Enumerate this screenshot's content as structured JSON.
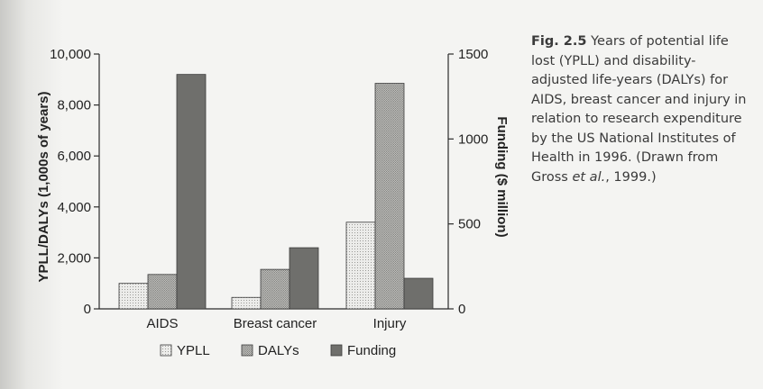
{
  "caption": {
    "fig_label": "Fig. 2.5",
    "text_before_etal": "Years of potential life lost (YPLL) and disability-adjusted life-years (DALYs) for AIDS, breast cancer and injury in relation to research expenditure by the US National Institutes of Health in 1996. (Drawn from Gross ",
    "etal": "et al.",
    "text_after_etal": ", 1999.)"
  },
  "chart_data": {
    "type": "bar",
    "categories": [
      "AIDS",
      "Breast cancer",
      "Injury"
    ],
    "series": [
      {
        "name": "YPLL",
        "axis": "left",
        "values": [
          1000,
          450,
          3400
        ],
        "color": "#e8e8e6",
        "pattern": "dotted"
      },
      {
        "name": "DALYs",
        "axis": "left",
        "values": [
          1350,
          1550,
          8850
        ],
        "color": "#b0b0ad",
        "pattern": "dotted"
      },
      {
        "name": "Funding",
        "axis": "right",
        "values": [
          1380,
          360,
          180
        ],
        "color": "#6f6f6c",
        "pattern": "solid"
      }
    ],
    "ylabel": "YPLL/DALYs (1,000s of years)",
    "ylabel_right": "Funding ($ million)",
    "ylim": [
      0,
      10000
    ],
    "ylim_right": [
      0,
      1500
    ],
    "yticks": [
      0,
      2000,
      4000,
      6000,
      8000,
      10000
    ],
    "yticks_labels": [
      "0",
      "2,000",
      "4,000",
      "6,000",
      "8,000",
      "10,000"
    ],
    "yticks_right": [
      0,
      500,
      1000,
      1500
    ],
    "yticks_right_labels": [
      "0",
      "500",
      "1000",
      "1500"
    ],
    "legend_position": "bottom",
    "grid": false
  }
}
